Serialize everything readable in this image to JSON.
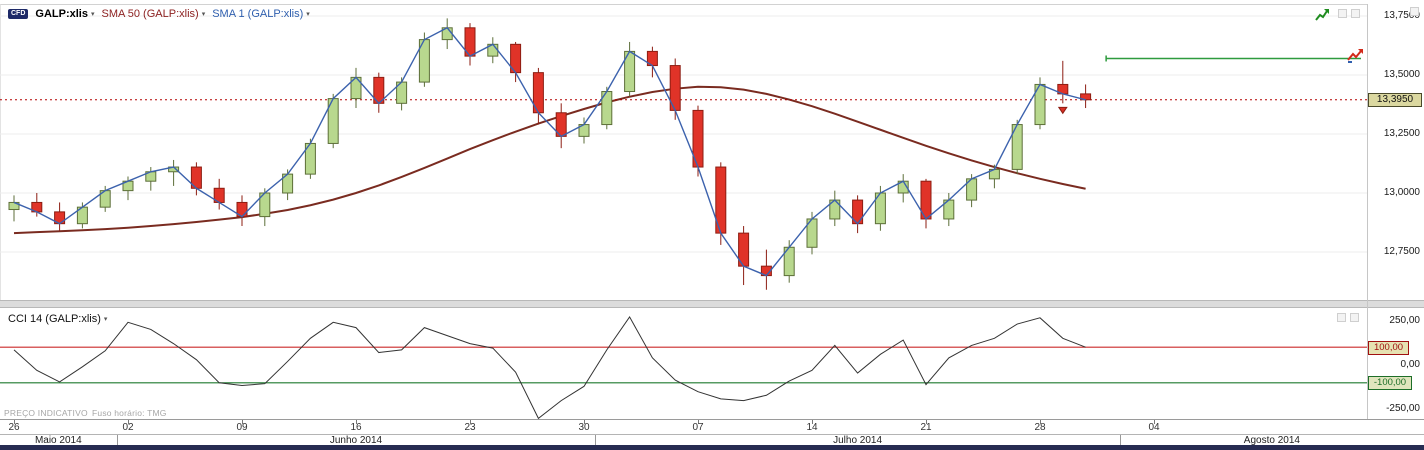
{
  "toolbar": {
    "cfd_badge": "CFD",
    "instrument": "GALP:xlis",
    "sma50_label": "SMA 50 (GALP:xlis)",
    "sma1_label": "SMA 1 (GALP:xlis)",
    "dropdown_caret": "▾"
  },
  "indicator_panel": {
    "label": "CCI 14 (GALP:xlis)"
  },
  "price_axis": {
    "gridline_labels": [
      "13,7500",
      "13,5000",
      "13,2500",
      "13,0000",
      "12,7500"
    ],
    "current_price_badge": "13,3950"
  },
  "cci_axis": {
    "top_label": "250,00",
    "zero_label": "0,00",
    "bottom_label": "-250,00",
    "upper_level_badge": "100,00",
    "lower_level_badge": "-100,00"
  },
  "footer": {
    "notice": "PREÇO INDICATIVO",
    "timezone": "Fuso horário: TMG"
  },
  "colors": {
    "candle_up": "#b8d88e",
    "candle_down": "#e03328",
    "sma50": "#7a2b20",
    "sma1": "#3c62ad",
    "current_price_line": "#b30000",
    "alert_line": "#2e9b3e",
    "cci_line": "#333333",
    "cci_upper_level": "#cc2a2a",
    "cci_lower_level": "#1f7a2f",
    "scrollbar": "#272c52",
    "badge_bg": "#dbd8a0"
  },
  "chart_data": {
    "type": "candlestick",
    "instrument": "GALP:xlis",
    "title": "GALP:xlis daily with SMA 50, SMA 1 and CCI 14",
    "price_range": [
      12.55,
      13.8
    ],
    "gridlines": [
      13.75,
      13.5,
      13.25,
      13.0,
      12.75
    ],
    "current_price": 13.395,
    "alert_level": 13.57,
    "dates": [
      "26/05",
      "27/05",
      "28/05",
      "29/05",
      "30/05",
      "02/06",
      "03/06",
      "04/06",
      "05/06",
      "06/06",
      "09/06",
      "10/06",
      "11/06",
      "12/06",
      "13/06",
      "16/06",
      "17/06",
      "18/06",
      "19/06",
      "20/06",
      "23/06",
      "24/06",
      "25/06",
      "26/06",
      "27/06",
      "30/06",
      "01/07",
      "02/07",
      "03/07",
      "04/07",
      "07/07",
      "08/07",
      "09/07",
      "10/07",
      "11/07",
      "14/07",
      "15/07",
      "16/07",
      "17/07",
      "18/07",
      "21/07",
      "22/07",
      "23/07",
      "24/07",
      "25/07",
      "28/07",
      "29/07",
      "30/07"
    ],
    "ohlc": [
      [
        12.93,
        12.99,
        12.88,
        12.96
      ],
      [
        12.96,
        13.0,
        12.9,
        12.92
      ],
      [
        12.92,
        12.96,
        12.84,
        12.87
      ],
      [
        12.87,
        12.96,
        12.85,
        12.94
      ],
      [
        12.94,
        13.03,
        12.92,
        13.01
      ],
      [
        13.01,
        13.07,
        12.97,
        13.05
      ],
      [
        13.05,
        13.11,
        13.01,
        13.09
      ],
      [
        13.09,
        13.14,
        13.03,
        13.11
      ],
      [
        13.11,
        13.13,
        12.99,
        13.02
      ],
      [
        13.02,
        13.06,
        12.93,
        12.96
      ],
      [
        12.96,
        12.99,
        12.86,
        12.9
      ],
      [
        12.9,
        13.02,
        12.86,
        13.0
      ],
      [
        13.0,
        13.1,
        12.97,
        13.08
      ],
      [
        13.08,
        13.23,
        13.06,
        13.21
      ],
      [
        13.21,
        13.42,
        13.19,
        13.4
      ],
      [
        13.4,
        13.53,
        13.36,
        13.49
      ],
      [
        13.49,
        13.51,
        13.34,
        13.38
      ],
      [
        13.38,
        13.49,
        13.35,
        13.47
      ],
      [
        13.47,
        13.68,
        13.45,
        13.65
      ],
      [
        13.65,
        13.74,
        13.61,
        13.7
      ],
      [
        13.7,
        13.72,
        13.54,
        13.58
      ],
      [
        13.58,
        13.66,
        13.55,
        13.63
      ],
      [
        13.63,
        13.64,
        13.47,
        13.51
      ],
      [
        13.51,
        13.53,
        13.29,
        13.34
      ],
      [
        13.34,
        13.38,
        13.19,
        13.24
      ],
      [
        13.24,
        13.32,
        13.21,
        13.29
      ],
      [
        13.29,
        13.45,
        13.27,
        13.43
      ],
      [
        13.43,
        13.64,
        13.41,
        13.6
      ],
      [
        13.6,
        13.62,
        13.49,
        13.54
      ],
      [
        13.54,
        13.57,
        13.31,
        13.35
      ],
      [
        13.35,
        13.37,
        13.07,
        13.11
      ],
      [
        13.11,
        13.13,
        12.78,
        12.83
      ],
      [
        12.83,
        12.86,
        12.61,
        12.69
      ],
      [
        12.69,
        12.76,
        12.59,
        12.65
      ],
      [
        12.65,
        12.8,
        12.62,
        12.77
      ],
      [
        12.77,
        12.92,
        12.74,
        12.89
      ],
      [
        12.89,
        13.01,
        12.86,
        12.97
      ],
      [
        12.97,
        12.99,
        12.83,
        12.87
      ],
      [
        12.87,
        13.03,
        12.84,
        13.0
      ],
      [
        13.0,
        13.08,
        12.96,
        13.05
      ],
      [
        13.05,
        13.06,
        12.85,
        12.89
      ],
      [
        12.89,
        13.0,
        12.86,
        12.97
      ],
      [
        12.97,
        13.08,
        12.94,
        13.06
      ],
      [
        13.06,
        13.12,
        13.02,
        13.1
      ],
      [
        13.1,
        13.31,
        13.08,
        13.29
      ],
      [
        13.29,
        13.49,
        13.27,
        13.46
      ],
      [
        13.46,
        13.56,
        13.38,
        13.42
      ],
      [
        13.42,
        13.46,
        13.36,
        13.395
      ]
    ],
    "sma50": [
      12.83,
      12.834,
      12.838,
      12.842,
      12.847,
      12.853,
      12.86,
      12.868,
      12.877,
      12.887,
      12.898,
      12.912,
      12.928,
      12.948,
      12.972,
      13.0,
      13.032,
      13.068,
      13.106,
      13.146,
      13.186,
      13.224,
      13.26,
      13.294,
      13.326,
      13.356,
      13.384,
      13.408,
      13.428,
      13.442,
      13.45,
      13.448,
      13.438,
      13.42,
      13.396,
      13.368,
      13.336,
      13.302,
      13.268,
      13.234,
      13.2,
      13.168,
      13.138,
      13.11,
      13.084,
      13.06,
      13.038,
      13.018
    ],
    "cci": {
      "period": 14,
      "values": [
        85,
        -30,
        -95,
        -10,
        80,
        240,
        200,
        120,
        30,
        -100,
        -115,
        -105,
        20,
        150,
        240,
        210,
        70,
        85,
        210,
        165,
        120,
        95,
        -40,
        -300,
        -200,
        -120,
        85,
        270,
        40,
        -85,
        -150,
        -190,
        -200,
        -170,
        -90,
        -30,
        110,
        -45,
        60,
        140,
        -110,
        40,
        110,
        150,
        230,
        265,
        150,
        100
      ],
      "upper_level": 100,
      "lower_level": -100,
      "range": [
        -250,
        250
      ]
    },
    "x_ticks": [
      {
        "index": 0,
        "label": "26"
      },
      {
        "index": 5,
        "label": "02"
      },
      {
        "index": 10,
        "label": "09"
      },
      {
        "index": 15,
        "label": "16"
      },
      {
        "index": 20,
        "label": "23"
      },
      {
        "index": 25,
        "label": "30"
      },
      {
        "index": 30,
        "label": "07"
      },
      {
        "index": 35,
        "label": "14"
      },
      {
        "index": 40,
        "label": "21"
      },
      {
        "index": 45,
        "label": "28"
      },
      {
        "index": 50,
        "label": "04"
      }
    ],
    "months": [
      {
        "label": "Maio 2014",
        "from_index": -0.62,
        "to_index": 4.5
      },
      {
        "label": "Junho 2014",
        "from_index": 4.5,
        "to_index": 25.5
      },
      {
        "label": "Julho 2014",
        "from_index": 25.5,
        "to_index": 48.5
      },
      {
        "label": "Agosto 2014",
        "from_index": 48.5,
        "to_index": 62
      }
    ],
    "sell_marker_index": 46
  }
}
